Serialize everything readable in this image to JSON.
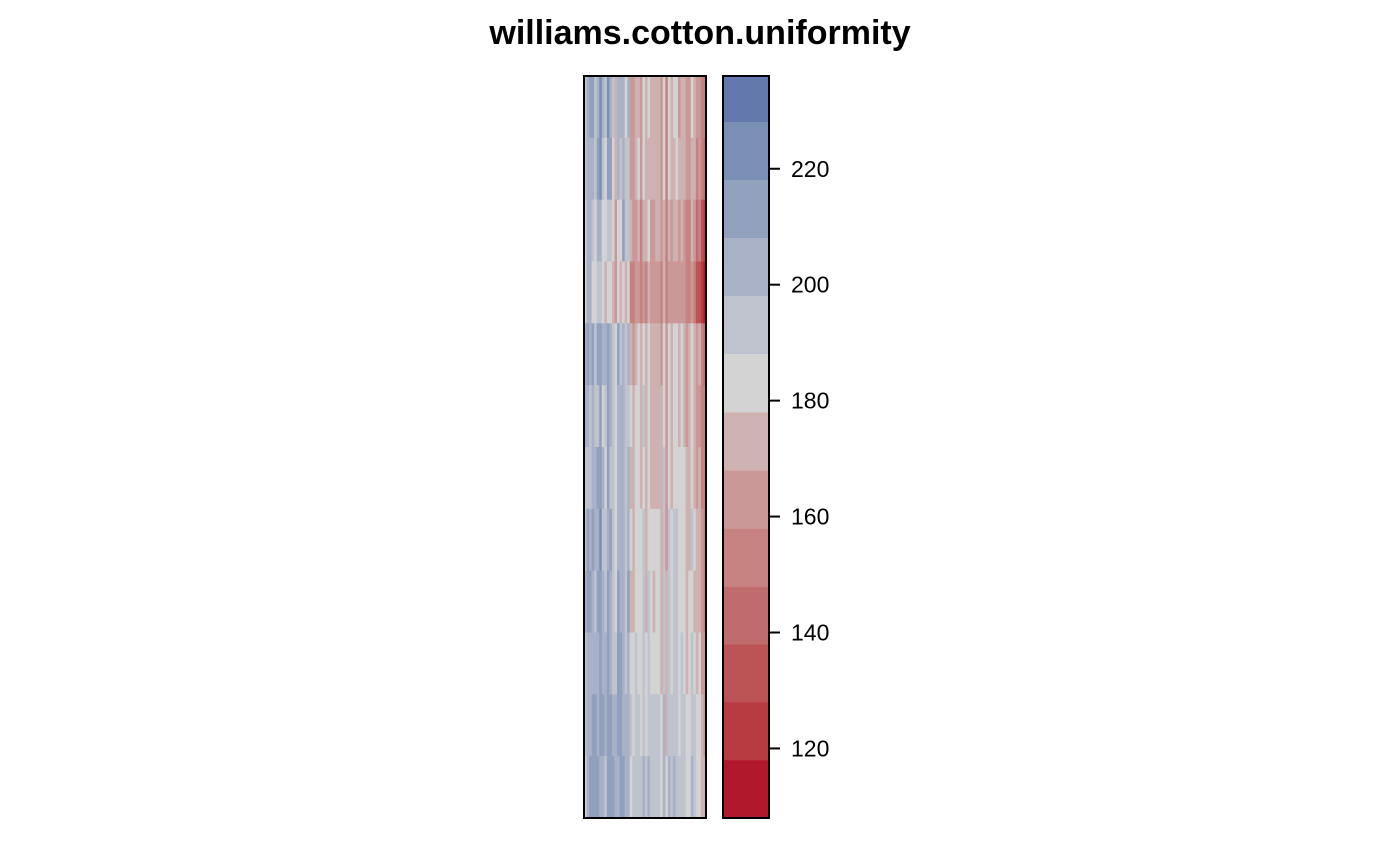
{
  "chart_data": {
    "type": "heatmap",
    "title": "williams.cotton.uniformity",
    "xlabel": "",
    "ylabel": "",
    "grid": false,
    "n_rows": 12,
    "n_cols": 48,
    "value_range": [
      108,
      236
    ],
    "colorbar": {
      "placement": "right",
      "breaks": [
        108,
        118,
        128,
        138,
        148,
        158,
        168,
        178,
        188,
        198,
        208,
        218,
        228,
        236
      ],
      "colors": [
        "#b2182b",
        "#b73b41",
        "#bc5456",
        "#c16c6c",
        "#c68281",
        "#ca9897",
        "#ceb1b1",
        "#d3d3d3",
        "#bec3ce",
        "#a8b1c5",
        "#90a0bd",
        "#7a8fb4",
        "#6379ad"
      ],
      "ticks": [
        120,
        140,
        160,
        180,
        200,
        220
      ],
      "tick_labels": [
        "120",
        "140",
        "160",
        "180",
        "200",
        "220"
      ]
    },
    "z": [
      [
        188,
        200,
        210,
        212,
        196,
        205,
        218,
        200,
        192,
        224,
        206,
        188,
        170,
        203,
        200,
        198,
        186,
        200,
        158,
        166,
        176,
        176,
        160,
        182,
        176,
        178,
        174,
        172,
        174,
        168,
        162,
        186,
        152,
        178,
        170,
        182,
        180,
        166,
        176,
        170,
        160,
        166,
        180,
        170,
        158,
        164,
        150,
        152
      ],
      [
        192,
        205,
        200,
        202,
        196,
        210,
        220,
        194,
        185,
        212,
        208,
        187,
        176,
        198,
        196,
        202,
        190,
        196,
        166,
        162,
        172,
        178,
        166,
        180,
        170,
        176,
        170,
        168,
        170,
        172,
        164,
        180,
        156,
        182,
        168,
        176,
        178,
        170,
        172,
        168,
        158,
        162,
        176,
        172,
        156,
        160,
        148,
        140
      ],
      [
        186,
        203,
        205,
        196,
        186,
        203,
        200,
        186,
        185,
        190,
        188,
        185,
        166,
        186,
        182,
        208,
        196,
        192,
        170,
        166,
        166,
        172,
        156,
        172,
        168,
        182,
        164,
        164,
        168,
        170,
        164,
        176,
        154,
        170,
        162,
        172,
        170,
        164,
        170,
        164,
        156,
        154,
        170,
        164,
        146,
        150,
        130,
        124
      ],
      [
        186,
        198,
        200,
        186,
        180,
        190,
        192,
        180,
        175,
        180,
        182,
        172,
        162,
        178,
        176,
        184,
        174,
        186,
        148,
        152,
        160,
        162,
        152,
        166,
        154,
        176,
        160,
        160,
        164,
        160,
        156,
        170,
        148,
        164,
        158,
        164,
        166,
        158,
        166,
        158,
        148,
        148,
        164,
        154,
        134,
        130,
        120,
        114
      ],
      [
        198,
        210,
        206,
        210,
        192,
        210,
        208,
        198,
        200,
        216,
        204,
        190,
        180,
        212,
        194,
        200,
        192,
        205,
        168,
        160,
        176,
        180,
        170,
        178,
        172,
        180,
        172,
        170,
        176,
        176,
        164,
        186,
        160,
        184,
        176,
        184,
        182,
        176,
        182,
        174,
        164,
        168,
        182,
        176,
        162,
        168,
        150,
        146
      ],
      [
        200,
        198,
        196,
        200,
        196,
        196,
        214,
        186,
        190,
        210,
        200,
        192,
        184,
        200,
        202,
        198,
        190,
        196,
        178,
        170,
        182,
        182,
        176,
        190,
        172,
        184,
        176,
        172,
        176,
        176,
        168,
        186,
        164,
        186,
        172,
        186,
        184,
        172,
        180,
        176,
        164,
        172,
        180,
        174,
        166,
        164,
        150,
        148
      ],
      [
        188,
        196,
        190,
        202,
        200,
        210,
        214,
        200,
        186,
        216,
        196,
        188,
        180,
        198,
        200,
        200,
        192,
        204,
        170,
        168,
        180,
        180,
        174,
        184,
        174,
        184,
        174,
        176,
        176,
        174,
        168,
        190,
        160,
        184,
        176,
        186,
        184,
        178,
        180,
        178,
        168,
        170,
        184,
        176,
        164,
        168,
        156,
        154
      ],
      [
        196,
        210,
        200,
        212,
        204,
        206,
        218,
        190,
        194,
        206,
        208,
        194,
        186,
        200,
        206,
        200,
        194,
        200,
        178,
        172,
        186,
        186,
        180,
        190,
        176,
        186,
        180,
        180,
        182,
        180,
        172,
        192,
        166,
        190,
        180,
        190,
        188,
        180,
        186,
        182,
        170,
        176,
        188,
        180,
        168,
        172,
        160,
        156
      ],
      [
        205,
        210,
        215,
        200,
        192,
        214,
        212,
        200,
        188,
        216,
        206,
        190,
        182,
        208,
        202,
        204,
        196,
        208,
        176,
        168,
        184,
        182,
        178,
        190,
        176,
        188,
        178,
        176,
        184,
        180,
        170,
        192,
        168,
        188,
        178,
        190,
        188,
        182,
        184,
        180,
        168,
        178,
        186,
        176,
        170,
        172,
        158,
        154
      ],
      [
        195,
        200,
        206,
        206,
        206,
        198,
        210,
        200,
        202,
        210,
        202,
        196,
        188,
        212,
        208,
        204,
        188,
        202,
        180,
        178,
        188,
        186,
        180,
        192,
        182,
        190,
        180,
        182,
        184,
        182,
        176,
        196,
        168,
        192,
        182,
        194,
        190,
        184,
        188,
        184,
        172,
        178,
        192,
        184,
        172,
        178,
        164,
        160
      ],
      [
        192,
        206,
        206,
        210,
        214,
        206,
        212,
        212,
        206,
        212,
        212,
        204,
        200,
        210,
        210,
        202,
        200,
        206,
        188,
        186,
        192,
        188,
        186,
        196,
        186,
        196,
        188,
        188,
        190,
        190,
        182,
        198,
        176,
        196,
        188,
        196,
        194,
        186,
        192,
        190,
        178,
        184,
        196,
        188,
        180,
        182,
        170,
        166
      ],
      [
        186,
        200,
        212,
        208,
        212,
        216,
        206,
        206,
        196,
        214,
        214,
        210,
        204,
        200,
        214,
        212,
        200,
        202,
        186,
        190,
        196,
        192,
        190,
        198,
        190,
        200,
        192,
        190,
        196,
        192,
        184,
        200,
        180,
        198,
        190,
        200,
        196,
        192,
        194,
        190,
        180,
        186,
        198,
        190,
        180,
        184,
        176,
        170
      ]
    ]
  }
}
